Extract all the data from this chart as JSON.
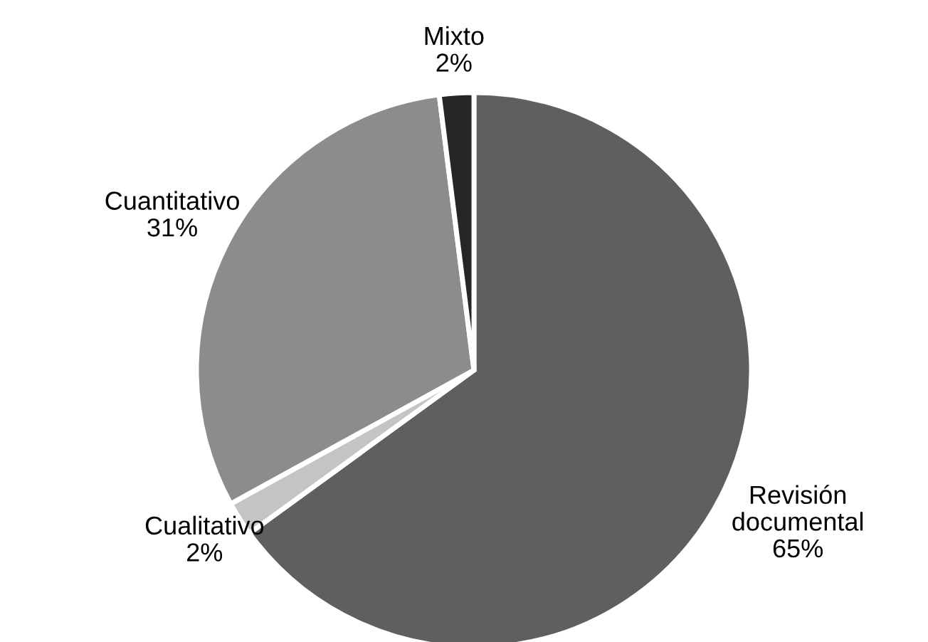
{
  "chart_data": {
    "type": "pie",
    "categories": [
      "Revisión documental",
      "Cualitativo",
      "Cuantitativo",
      "Mixto"
    ],
    "values": [
      65,
      2,
      31,
      2
    ],
    "colors": [
      "#5f5f5f",
      "#c4c4c4",
      "#8c8c8c",
      "#262626"
    ],
    "value_labels": [
      "65%",
      "2%",
      "31%",
      "2%"
    ],
    "legend": false
  }
}
